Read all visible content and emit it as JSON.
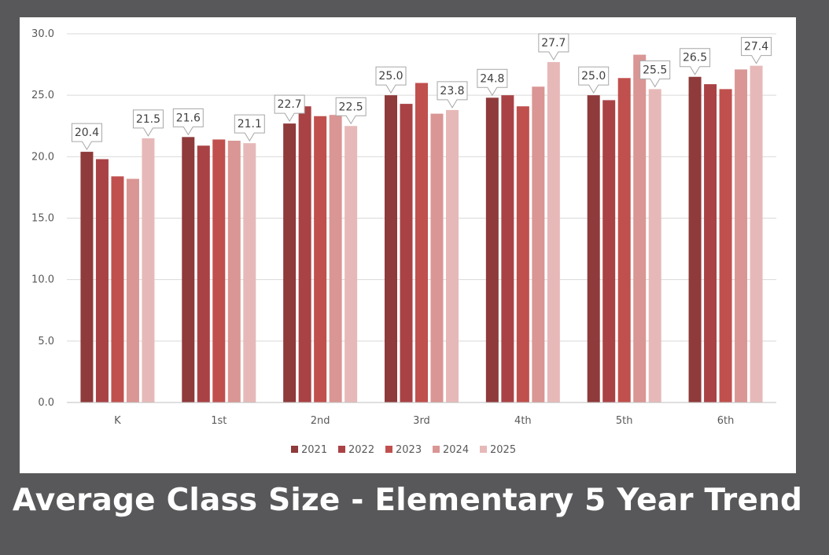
{
  "title": "Average Class Size - Elementary 5 Year Trend",
  "chart_data": {
    "type": "bar",
    "title": "",
    "xlabel": "",
    "ylabel": "",
    "ylim": [
      0,
      30
    ],
    "yticks": [
      "0.0",
      "5.0",
      "10.0",
      "15.0",
      "20.0",
      "25.0",
      "30.0"
    ],
    "grid": true,
    "legend_position": "bottom",
    "categories": [
      "K",
      "1st",
      "2nd",
      "3rd",
      "4th",
      "5th",
      "6th"
    ],
    "series": [
      {
        "name": "2021",
        "color": "#8f3a3b",
        "values": [
          20.4,
          21.6,
          22.7,
          25.0,
          24.8,
          25.0,
          26.5
        ]
      },
      {
        "name": "2022",
        "color": "#a94245",
        "values": [
          19.8,
          20.9,
          24.1,
          24.3,
          25.0,
          24.6,
          25.9
        ]
      },
      {
        "name": "2023",
        "color": "#c0504d",
        "values": [
          18.4,
          21.4,
          23.3,
          26.0,
          24.1,
          26.4,
          25.5
        ]
      },
      {
        "name": "2024",
        "color": "#d99694",
        "values": [
          18.2,
          21.3,
          23.4,
          23.5,
          25.7,
          28.3,
          27.1
        ]
      },
      {
        "name": "2025",
        "color": "#e6b9b8",
        "values": [
          21.5,
          21.1,
          22.5,
          23.8,
          27.7,
          25.5,
          27.4
        ]
      }
    ],
    "annotations": [
      {
        "category": "K",
        "series": "2021",
        "label": "20.4"
      },
      {
        "category": "K",
        "series": "2025",
        "label": "21.5"
      },
      {
        "category": "1st",
        "series": "2021",
        "label": "21.6"
      },
      {
        "category": "1st",
        "series": "2025",
        "label": "21.1"
      },
      {
        "category": "2nd",
        "series": "2021",
        "label": "22.7"
      },
      {
        "category": "2nd",
        "series": "2025",
        "label": "22.5"
      },
      {
        "category": "3rd",
        "series": "2021",
        "label": "25.0"
      },
      {
        "category": "3rd",
        "series": "2025",
        "label": "23.8"
      },
      {
        "category": "4th",
        "series": "2021",
        "label": "24.8"
      },
      {
        "category": "4th",
        "series": "2025",
        "label": "27.7"
      },
      {
        "category": "5th",
        "series": "2021",
        "label": "25.0"
      },
      {
        "category": "5th",
        "series": "2025",
        "label": "25.5"
      },
      {
        "category": "6th",
        "series": "2021",
        "label": "26.5"
      },
      {
        "category": "6th",
        "series": "2025",
        "label": "27.4"
      }
    ]
  }
}
